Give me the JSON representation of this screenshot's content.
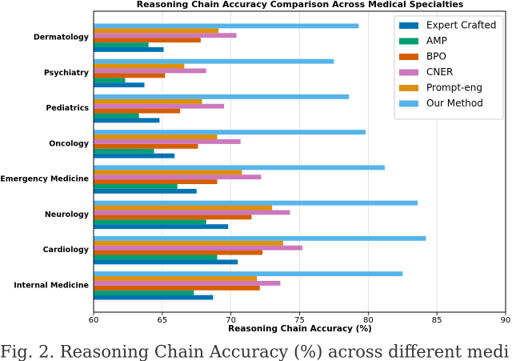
{
  "chart_data": {
    "type": "barh",
    "title": "Reasoning Chain Accuracy Comparison Across Medical Specialties",
    "x_label": "Reasoning Chain Accuracy (%)",
    "caption": "Fig. 2. Reasoning Chain Accuracy (%) across different medi",
    "categories": [
      "Internal Medicine",
      "Cardiology",
      "Neurology",
      "Emergency Medicine",
      "Oncology",
      "Pediatrics",
      "Psychiatry",
      "Dermatology"
    ],
    "series": [
      {
        "name": "Expert Crafted",
        "color": "#0173b2",
        "values": [
          68.7,
          70.5,
          69.8,
          67.5,
          65.9,
          64.8,
          63.7,
          65.1
        ]
      },
      {
        "name": "AMP",
        "color": "#029e73",
        "values": [
          67.3,
          69.0,
          68.2,
          66.1,
          64.4,
          63.3,
          62.3,
          64.0
        ]
      },
      {
        "name": "BPO",
        "color": "#d55e00",
        "values": [
          72.1,
          72.3,
          71.5,
          69.0,
          67.6,
          66.3,
          65.2,
          67.8
        ]
      },
      {
        "name": "CNER",
        "color": "#cc78bc",
        "values": [
          73.6,
          75.2,
          74.3,
          72.2,
          70.7,
          69.5,
          68.2,
          70.4
        ]
      },
      {
        "name": "Prompt-eng",
        "color": "#de8f05",
        "values": [
          71.9,
          73.8,
          73.0,
          70.8,
          69.0,
          67.9,
          66.6,
          69.1
        ]
      },
      {
        "name": "Our Method",
        "color": "#56b4e9",
        "values": [
          82.5,
          84.2,
          83.6,
          81.2,
          79.8,
          78.6,
          77.5,
          79.3
        ]
      }
    ],
    "xlim": [
      60,
      90
    ],
    "xticks": [
      60,
      65,
      70,
      75,
      80,
      85,
      90
    ],
    "grid": true,
    "legend": "upper right"
  }
}
